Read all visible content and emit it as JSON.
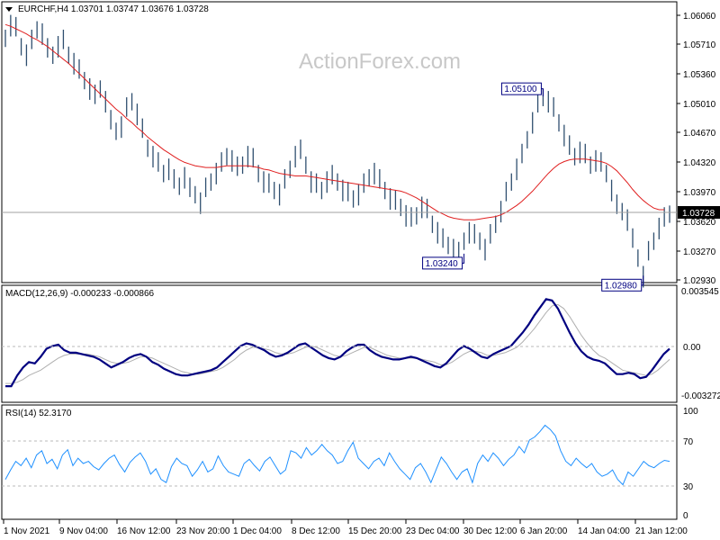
{
  "watermark": "ActionForex.com",
  "price_panel": {
    "header": "EURCHF,H4  1.03701 1.03747 1.03676 1.03728",
    "current_price_label": "1.03728",
    "annotations": [
      {
        "label": "1.05100",
        "date_index": 102,
        "value": 1.051
      },
      {
        "label": "1.03240",
        "date_index": 87,
        "value": 1.0324
      },
      {
        "label": "1.02980",
        "date_index": 121,
        "value": 1.0298
      }
    ],
    "y_ticks": [
      "1.06060",
      "1.05710",
      "1.05360",
      "1.05010",
      "1.04670",
      "1.04320",
      "1.03970",
      "1.03620",
      "1.03270",
      "1.02930"
    ]
  },
  "macd_panel": {
    "header": "MACD(12,26,9) -0.000233 -0.000866",
    "y_ticks": [
      "0.003545",
      "0.00",
      "-0.003272"
    ]
  },
  "rsi_panel": {
    "header": "RSI(14) 52.3170",
    "y_ticks": [
      "100",
      "70",
      "30",
      "0"
    ]
  },
  "x_ticks": [
    "1 Nov 2021",
    "9 Nov 04:00",
    "16 Nov 12:00",
    "23 Nov 20:00",
    "1 Dec 04:00",
    "8 Dec 12:00",
    "15 Dec 20:00",
    "23 Dec 04:00",
    "30 Dec 12:00",
    "6 Jan 20:00",
    "14 Jan 04:00",
    "21 Jan 12:00"
  ],
  "colors": {
    "candles": "#2f4f6f",
    "moving_average": "#e02020",
    "macd_line": "#000080",
    "signal_line": "#b0b0b0",
    "rsi_line": "#1e90ff",
    "grid_dash": "#b8b8b8",
    "annotation_text": "#000080"
  },
  "chart_data": [
    {
      "type": "line",
      "title": "EURCHF,H4",
      "ylim": [
        1.0293,
        1.0606
      ],
      "series": [
        {
          "name": "EURCHF",
          "values": [
            1.058,
            1.0595,
            1.059,
            1.057,
            1.056,
            1.0575,
            1.059,
            1.0585,
            1.0565,
            1.056,
            1.057,
            1.0575,
            1.056,
            1.055,
            1.054,
            1.053,
            1.052,
            1.051,
            1.052,
            1.0505,
            1.048,
            1.047,
            1.0475,
            1.0495,
            1.0505,
            1.049,
            1.047,
            1.045,
            1.044,
            1.043,
            1.042,
            1.0425,
            1.041,
            1.0405,
            1.0415,
            1.04,
            1.0395,
            1.0385,
            1.04,
            1.041,
            1.042,
            1.043,
            1.044,
            1.0435,
            1.0425,
            1.043,
            1.044,
            1.0435,
            1.042,
            1.041,
            1.0405,
            1.04,
            1.0395,
            1.041,
            1.0425,
            1.044,
            1.0445,
            1.043,
            1.041,
            1.0405,
            1.04,
            1.041,
            1.0415,
            1.041,
            1.04,
            1.0395,
            1.039,
            1.0395,
            1.0405,
            1.0415,
            1.042,
            1.041,
            1.04,
            1.039,
            1.0385,
            1.038,
            1.037,
            1.0365,
            1.037,
            1.038,
            1.0375,
            1.036,
            1.035,
            1.034,
            1.0335,
            1.033,
            1.0324,
            1.034,
            1.035,
            1.0345,
            1.034,
            1.033,
            1.0345,
            1.036,
            1.0375,
            1.0395,
            1.041,
            1.0425,
            1.044,
            1.046,
            1.048,
            1.05,
            1.051,
            1.0505,
            1.0495,
            1.048,
            1.0465,
            1.045,
            1.044,
            1.0445,
            1.044,
            1.043,
            1.0435,
            1.043,
            1.042,
            1.04,
            1.038,
            1.0375,
            1.0365,
            1.034,
            1.032,
            1.0298,
            1.0325,
            1.034,
            1.0355,
            1.0365,
            1.0372
          ]
        },
        {
          "name": "Moving Average",
          "values": [
            1.0595,
            1.0593,
            1.059,
            1.0587,
            1.0584,
            1.058,
            1.0577,
            1.0573,
            1.0569,
            1.0564,
            1.0559,
            1.0554,
            1.0549,
            1.0543,
            1.0537,
            1.0531,
            1.0525,
            1.0519,
            1.0513,
            1.0507,
            1.0501,
            1.0495,
            1.049,
            1.0484,
            1.0479,
            1.0473,
            1.0468,
            1.0462,
            1.0457,
            1.0452,
            1.0447,
            1.0443,
            1.0439,
            1.0435,
            1.0432,
            1.043,
            1.0428,
            1.0427,
            1.0426,
            1.0426,
            1.0426,
            1.0427,
            1.0428,
            1.0428,
            1.0428,
            1.0428,
            1.0428,
            1.0427,
            1.0426,
            1.0424,
            1.0423,
            1.0421,
            1.0419,
            1.0418,
            1.0417,
            1.0416,
            1.0416,
            1.0416,
            1.0415,
            1.0414,
            1.0413,
            1.0412,
            1.0411,
            1.041,
            1.0409,
            1.0408,
            1.0407,
            1.0406,
            1.0405,
            1.0404,
            1.0403,
            1.0402,
            1.0401,
            1.04,
            1.0399,
            1.0398,
            1.0396,
            1.0393,
            1.039,
            1.0386,
            1.0382,
            1.0378,
            1.0374,
            1.0371,
            1.0368,
            1.0366,
            1.0365,
            1.0364,
            1.0364,
            1.0364,
            1.0365,
            1.0366,
            1.0367,
            1.0368,
            1.037,
            1.0373,
            1.0377,
            1.0381,
            1.0386,
            1.0392,
            1.0398,
            1.0405,
            1.0412,
            1.0419,
            1.0425,
            1.043,
            1.0433,
            1.0435,
            1.0436,
            1.0436,
            1.0436,
            1.0435,
            1.0434,
            1.0433,
            1.0431,
            1.0427,
            1.0422,
            1.0415,
            1.0408,
            1.04,
            1.0393,
            1.0387,
            1.0382,
            1.0378,
            1.0376,
            1.0376
          ]
        }
      ]
    },
    {
      "type": "line",
      "title": "MACD(12,26,9)",
      "ylim": [
        -0.004,
        0.0042
      ],
      "series": [
        {
          "name": "MACD",
          "values": [
            -0.003,
            -0.003,
            -0.0022,
            -0.0016,
            -0.0012,
            -0.0013,
            -0.0008,
            -0.0002,
            0.0,
            0.0001,
            -0.0003,
            -0.0005,
            -0.0005,
            -0.0006,
            -0.0007,
            -0.0008,
            -0.001,
            -0.0013,
            -0.0016,
            -0.0014,
            -0.0012,
            -0.0009,
            -0.0007,
            -0.0006,
            -0.0008,
            -0.0012,
            -0.0014,
            -0.0017,
            -0.0019,
            -0.0021,
            -0.0022,
            -0.0022,
            -0.0021,
            -0.002,
            -0.0019,
            -0.0018,
            -0.0016,
            -0.0012,
            -0.0008,
            -0.0004,
            0.0,
            0.0002,
            0.0001,
            -0.0001,
            -0.0003,
            -0.0006,
            -0.0008,
            -0.0007,
            -0.0005,
            -0.0002,
            0.0001,
            0.0002,
            -0.0001,
            -0.0004,
            -0.0007,
            -0.0009,
            -0.001,
            -0.0008,
            -0.0004,
            -0.0001,
            0.0001,
            0.0001,
            -0.0003,
            -0.0006,
            -0.0008,
            -0.0009,
            -0.001,
            -0.001,
            -0.0009,
            -0.0008,
            -0.0009,
            -0.0011,
            -0.0013,
            -0.0015,
            -0.0016,
            -0.0013,
            -0.0008,
            -0.0003,
            0.0,
            -0.0002,
            -0.0005,
            -0.0008,
            -0.0009,
            -0.0006,
            -0.0004,
            -0.0002,
            0.0,
            0.0005,
            0.001,
            0.0016,
            0.0023,
            0.0029,
            0.0035,
            0.0034,
            0.0028,
            0.0019,
            0.001,
            0.0002,
            -0.0004,
            -0.0008,
            -0.001,
            -0.0011,
            -0.0013,
            -0.0017,
            -0.0021,
            -0.0021,
            -0.002,
            -0.0021,
            -0.0024,
            -0.0023,
            -0.0018,
            -0.0012,
            -0.0006,
            -0.0002
          ]
        },
        {
          "name": "Signal",
          "values": [
            -0.0028,
            -0.0028,
            -0.0027,
            -0.0025,
            -0.0022,
            -0.002,
            -0.0018,
            -0.0015,
            -0.0012,
            -0.0009,
            -0.0007,
            -0.0006,
            -0.0006,
            -0.0006,
            -0.0006,
            -0.0007,
            -0.0008,
            -0.001,
            -0.0012,
            -0.0013,
            -0.0013,
            -0.0012,
            -0.001,
            -0.0008,
            -0.0008,
            -0.0009,
            -0.0011,
            -0.0013,
            -0.0015,
            -0.0017,
            -0.0019,
            -0.002,
            -0.0021,
            -0.0021,
            -0.002,
            -0.0019,
            -0.0018,
            -0.0016,
            -0.0013,
            -0.001,
            -0.0006,
            -0.0003,
            -0.0001,
            -0.0001,
            -0.0002,
            -0.0003,
            -0.0005,
            -0.0006,
            -0.0006,
            -0.0005,
            -0.0003,
            -0.0001,
            0.0,
            -0.0001,
            -0.0003,
            -0.0005,
            -0.0007,
            -0.0008,
            -0.0007,
            -0.0005,
            -0.0003,
            -0.0001,
            -0.0001,
            -0.0003,
            -0.0005,
            -0.0007,
            -0.0008,
            -0.0009,
            -0.0009,
            -0.0009,
            -0.0009,
            -0.001,
            -0.0011,
            -0.0012,
            -0.0014,
            -0.0014,
            -0.0012,
            -0.0009,
            -0.0006,
            -0.0004,
            -0.0004,
            -0.0005,
            -0.0007,
            -0.0007,
            -0.0006,
            -0.0005,
            -0.0003,
            -0.0001,
            0.0003,
            0.0008,
            0.0013,
            0.0019,
            0.0025,
            0.003,
            0.0031,
            0.0028,
            0.0022,
            0.0015,
            0.0008,
            0.0002,
            -0.0003,
            -0.0007,
            -0.0009,
            -0.0012,
            -0.0015,
            -0.0018,
            -0.0019,
            -0.002,
            -0.0021,
            -0.0022,
            -0.0021,
            -0.0018,
            -0.0014,
            -0.001
          ]
        }
      ]
    },
    {
      "type": "line",
      "title": "RSI(14)",
      "ylim": [
        0,
        100
      ],
      "series": [
        {
          "name": "RSI",
          "values": [
            35,
            44,
            52,
            48,
            55,
            46,
            58,
            62,
            50,
            54,
            45,
            58,
            63,
            48,
            55,
            50,
            52,
            47,
            44,
            50,
            55,
            58,
            49,
            42,
            51,
            56,
            60,
            52,
            40,
            45,
            35,
            32,
            47,
            55,
            50,
            48,
            38,
            44,
            52,
            42,
            45,
            57,
            48,
            42,
            40,
            38,
            50,
            54,
            48,
            43,
            52,
            56,
            48,
            40,
            44,
            62,
            60,
            55,
            65,
            58,
            62,
            68,
            62,
            58,
            50,
            52,
            62,
            70,
            55,
            50,
            45,
            52,
            55,
            48,
            60,
            52,
            45,
            40,
            35,
            46,
            50,
            42,
            32,
            44,
            56,
            50,
            42,
            35,
            42,
            45,
            32,
            50,
            58,
            52,
            60,
            55,
            48,
            54,
            58,
            66,
            60,
            72,
            75,
            80,
            86,
            82,
            76,
            62,
            52,
            48,
            55,
            50,
            46,
            50,
            42,
            38,
            40,
            44,
            35,
            30,
            42,
            38,
            45,
            52,
            48,
            46,
            50,
            53,
            52
          ]
        }
      ]
    }
  ]
}
